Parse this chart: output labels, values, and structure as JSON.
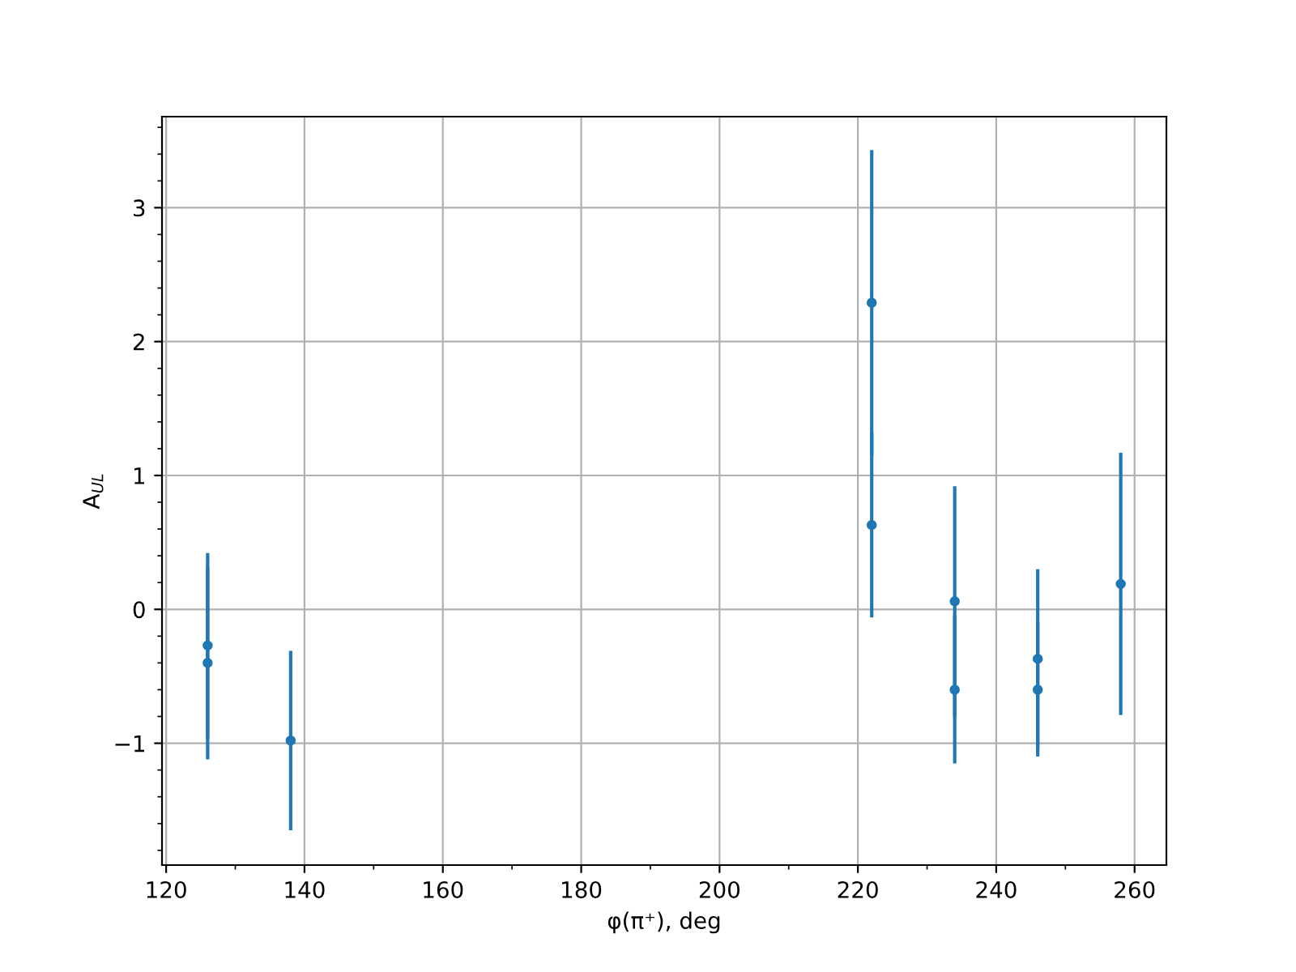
{
  "chart_data": {
    "type": "scatter",
    "xlabel": "φ(π⁺), deg",
    "ylabel": "A$_{UL}$",
    "x": [
      126,
      126,
      138,
      222,
      222,
      234,
      234,
      246,
      246,
      258
    ],
    "series": [
      {
        "color": "#1f77b4",
        "values": [
          -0.27,
          -0.4,
          -0.98,
          2.29,
          0.63,
          0.06,
          -0.6,
          -0.37,
          -0.6,
          0.19
        ],
        "errors": [
          0.69,
          0.72,
          0.67,
          1.14,
          0.69,
          0.86,
          0.55,
          0.67,
          0.5,
          0.98
        ]
      }
    ],
    "marker": "circle",
    "grid": true,
    "xlim": [
      119.4,
      264.6
    ],
    "xticks": [
      120,
      140,
      160,
      180,
      200,
      220,
      240,
      260
    ],
    "ylim": [
      -1.91,
      3.68
    ],
    "yticks": [
      {
        "value": -1,
        "label": "−1"
      },
      0,
      1,
      2,
      3
    ]
  }
}
